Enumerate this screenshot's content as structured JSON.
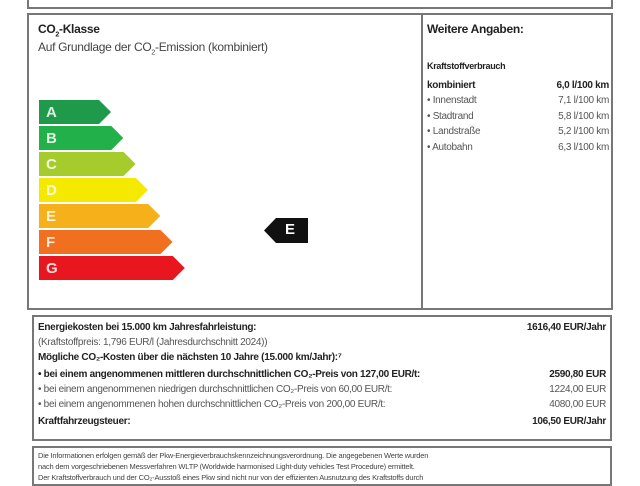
{
  "co2_class": {
    "title_prefix": "CO",
    "title_sub": "2",
    "title_suffix": "-Klasse",
    "subtitle_prefix": "Auf Grundlage der CO",
    "subtitle_sub": "2",
    "subtitle_suffix": "-Emission (kombiniert)",
    "classes": [
      {
        "label": "A",
        "color": "#1e9a4a"
      },
      {
        "label": "B",
        "color": "#22b04b"
      },
      {
        "label": "C",
        "color": "#a6cb2c"
      },
      {
        "label": "D",
        "color": "#f5e900"
      },
      {
        "label": "E",
        "color": "#f5b01a"
      },
      {
        "label": "F",
        "color": "#f07020"
      },
      {
        "label": "G",
        "color": "#e8171f"
      }
    ],
    "current_class": "E"
  },
  "further": {
    "title": "Weitere Angaben:",
    "section": "Kraftstoffverbrauch",
    "combined_label": "kombiniert",
    "combined_value": "6,0 l/100 km",
    "items": [
      {
        "label": "Innenstadt",
        "value": "7,1 l/100 km"
      },
      {
        "label": "Stadtrand",
        "value": "5,8 l/100 km"
      },
      {
        "label": "Landstraße",
        "value": "5,2 l/100 km"
      },
      {
        "label": "Autobahn",
        "value": "6,3 l/100 km"
      }
    ]
  },
  "costs": {
    "energy_label": "Energiekosten bei 15.000 km Jahresfahrleistung:",
    "energy_value": "1616,40 EUR/Jahr",
    "fuel_price": "(Kraftstoffpreis: 1,796 EUR/l (Jahresdurchschnitt 2024))",
    "co2_heading": "Mögliche CO₂-Kosten über die nächsten 10 Jahre (15.000 km/Jahr):⁷",
    "scenarios": [
      {
        "label": "• bei einem angenommenen mittleren durchschnittlichen CO₂-Preis von 127,00 EUR/t:",
        "value": "2590,80 EUR"
      },
      {
        "label": "• bei einem angenommenen niedrigen durchschnittlichen CO₂-Preis von 60,00 EUR/t:",
        "value": "1224,00 EUR"
      },
      {
        "label": "• bei einem angenommenen hohen durchschnittlichen CO₂-Preis von 200,00 EUR/t:",
        "value": "4080,00 EUR"
      }
    ],
    "tax_label": "Kraftfahrzeugsteuer:",
    "tax_value": "106,50 EUR/Jahr"
  },
  "footer": {
    "lines": [
      "Die Informationen erfolgen gemäß der Pkw-Energieverbrauchskennzeichnungsverordnung. Die angegebenen Werte wurden",
      "nach dem vorgeschriebenen Messverfahren WLTP (Worldwide harmonised Light-duty vehicles Test Procedure) ermittelt.",
      "Der Kraftstoffverbrauch und der CO₂-Ausstoß eines Pkw sind nicht nur von der effizienten Ausnutzung des Kraftstoffs durch"
    ]
  }
}
